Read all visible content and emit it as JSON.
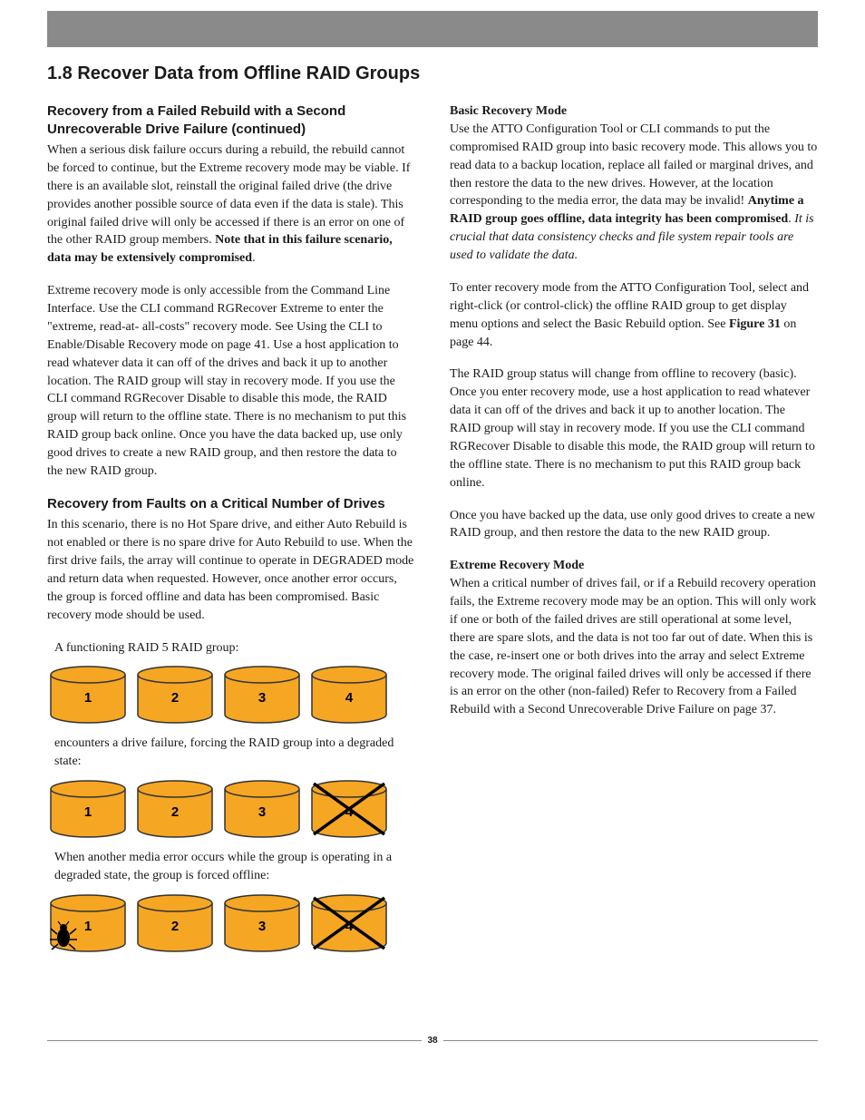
{
  "page": {
    "title": "1.8 Recover Data from Offline RAID Groups",
    "number": "38"
  },
  "colors": {
    "drive_fill": "#f5a623",
    "drive_stroke": "#333333",
    "gray_bar": "#8a8a8a",
    "text": "#1a1a1a",
    "background": "#ffffff"
  },
  "left": {
    "subhead1": "Recovery from a Failed Rebuild with a Second Unrecoverable Drive Failure (continued)",
    "p1_pre": "When a serious disk failure occurs during a rebuild, the rebuild cannot be forced to continue, but the Extreme recovery mode may be viable. If there is an available slot, reinstall the original failed drive (the drive provides another possible source of data even if the data is stale). This original failed drive will only be accessed if there is an error on one of the other RAID group members. ",
    "p1_bold": "Note that in this failure scenario, data may be extensively compromised",
    "p1_post": ".",
    "p2": "Extreme recovery mode is only accessible from the Command Line Interface. Use the CLI command RGRecover Extreme to enter the \"extreme, read-at- all-costs\" recovery mode. See Using the CLI to Enable/Disable Recovery mode on page 41. Use a host application to read whatever data it can off of the drives and back it up to another location. The RAID group will stay in recovery mode. If you use the CLI command RGRecover Disable to disable this mode, the RAID group will return to the offline state. There is no mechanism to put this RAID group back online. Once you have the data backed up, use only good drives to create a new RAID group, and then restore the data to the new RAID group.",
    "subhead2": "Recovery from Faults on a Critical Number of Drives",
    "p3": "In this scenario, there is no Hot Spare drive, and either Auto Rebuild is not enabled or there is no spare drive for Auto Rebuild to use. When the first drive fails, the array will continue to operate in DEGRADED mode and return data when requested. However, once another error occurs, the group is forced offline and data has been compromised. Basic recovery mode should be used.",
    "caption1": "A functioning RAID 5 RAID group:",
    "caption2": "encounters a drive failure, forcing the RAID group into a degraded state:",
    "caption3": "When another media error occurs while the group is operating in a degraded state, the group is forced offline:",
    "drives": {
      "row1": [
        {
          "label": "1",
          "crossed": false,
          "bug": false
        },
        {
          "label": "2",
          "crossed": false,
          "bug": false
        },
        {
          "label": "3",
          "crossed": false,
          "bug": false
        },
        {
          "label": "4",
          "crossed": false,
          "bug": false
        }
      ],
      "row2": [
        {
          "label": "1",
          "crossed": false,
          "bug": false
        },
        {
          "label": "2",
          "crossed": false,
          "bug": false
        },
        {
          "label": "3",
          "crossed": false,
          "bug": false
        },
        {
          "label": "4",
          "crossed": true,
          "bug": false
        }
      ],
      "row3": [
        {
          "label": "1",
          "crossed": false,
          "bug": true
        },
        {
          "label": "2",
          "crossed": false,
          "bug": false
        },
        {
          "label": "3",
          "crossed": false,
          "bug": false
        },
        {
          "label": "4",
          "crossed": true,
          "bug": false
        }
      ]
    }
  },
  "right": {
    "h1": "Basic Recovery Mode",
    "p1_pre": "Use the ATTO Configuration Tool or CLI commands to put the compromised RAID group into basic recovery mode. This allows you to read data to a backup location, replace all failed or marginal drives, and then restore the data to the new drives. However, at the location corresponding to the media error, the data may be invalid! ",
    "p1_bold": "Anytime a RAID group goes offline, data integrity has been compromised",
    "p1_mid": ". ",
    "p1_italic": "It is crucial that data consistency checks and file system repair tools are used to validate the data.",
    "p2_pre": "To enter recovery mode from the ATTO Configuration Tool, select and right-click (or control-click) the offline RAID group to get display menu options and select the Basic Rebuild option. See ",
    "p2_bold": "Figure 31",
    "p2_post": " on page 44.",
    "p3": "The RAID group status will change from offline to recovery (basic). Once you enter recovery mode, use a host application to read whatever data it can off of the drives and back it up to another location. The RAID group will stay in recovery mode. If you use the CLI command RGRecover Disable to disable this mode, the RAID group will return to the offline state. There is no mechanism to put this RAID group back online.",
    "p4": "Once you have backed up the data, use only good drives to create a new RAID group, and then restore the data to the new RAID group.",
    "h2": "Extreme Recovery Mode",
    "p5": "When a critical number of drives fail, or if a Rebuild recovery operation fails, the Extreme recovery mode may be an option. This will only work if one or both of the failed drives are still operational at some level, there are spare slots, and the data is not too far out of date. When this is the case, re-insert one or both drives into the array and select Extreme recovery mode. The original failed drives will only be accessed if there is an error on the other (non-failed) Refer to Recovery from a Failed Rebuild with a Second Unrecoverable Drive Failure on page 37."
  }
}
